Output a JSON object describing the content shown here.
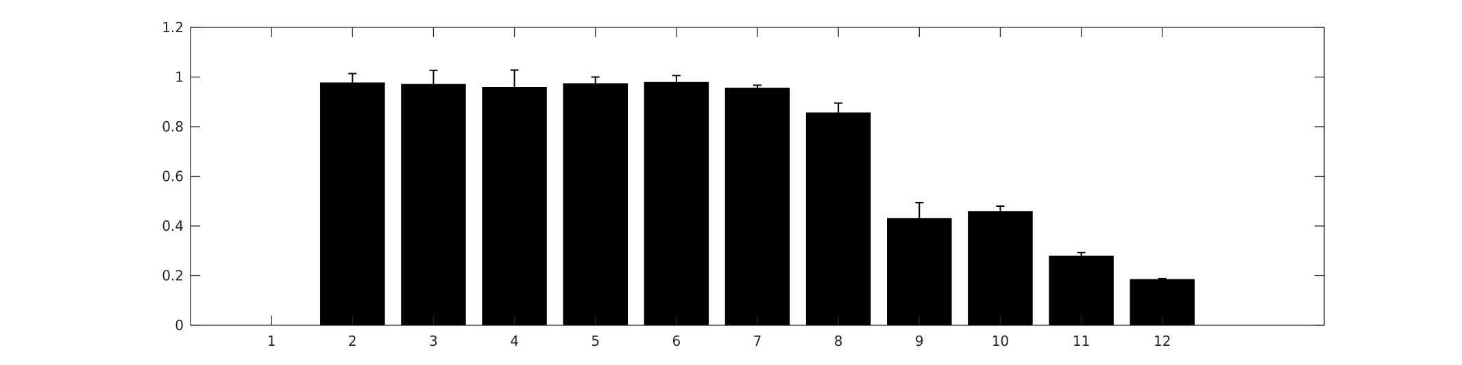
{
  "chart_data": {
    "type": "bar",
    "title": "",
    "xlabel": "",
    "ylabel": "",
    "categories": [
      "1",
      "2",
      "3",
      "4",
      "5",
      "6",
      "7",
      "8",
      "9",
      "10",
      "11",
      "12"
    ],
    "values": [
      0,
      0.978,
      0.972,
      0.96,
      0.975,
      0.98,
      0.957,
      0.857,
      0.432,
      0.46,
      0.28,
      0.186
    ],
    "errors": [
      0,
      0.036,
      0.055,
      0.068,
      0.025,
      0.026,
      0.01,
      0.038,
      0.062,
      0.02,
      0.013,
      0.002
    ],
    "ylim": [
      0,
      1.2
    ],
    "yticks": [
      0,
      0.2,
      0.4,
      0.6,
      0.8,
      1,
      1.2
    ],
    "ytick_labels": [
      "0",
      "0.2",
      "0.4",
      "0.6",
      "0.8",
      "1",
      "1.2"
    ],
    "xlim": [
      0,
      14
    ],
    "bar_color": "#000000",
    "grid": false,
    "box": true
  }
}
